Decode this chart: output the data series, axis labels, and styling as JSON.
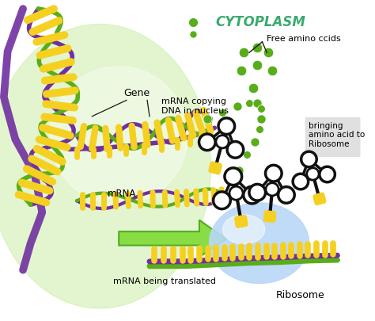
{
  "background_color": "#ffffff",
  "nucleus_color": "#c8eda0",
  "cytoplasm_label": "CYTOPLASM",
  "cytoplasm_color": "#3aaa6e",
  "labels": {
    "gene": "Gene",
    "mrna_copying": "mRNA copying\nDNA in nucleus",
    "mrna": "mRNA",
    "mrna_translated": "mRNA being translated",
    "free_amino": "Free amino ccids",
    "bringing": "bringing\namino acid to\nRibosome",
    "ribosome": "Ribosome"
  },
  "dna_purple": "#7030a0",
  "dna_green": "#5aad1a",
  "dna_black": "#1a1a1a",
  "dna_yellow": "#f5d020",
  "mrna_purple": "#9b30c8",
  "bead_color": "#5aad1a",
  "arrow_green": "#88dd44",
  "ribosome_blue": "#b8d8f8",
  "trna_outline": "#111111",
  "trna_fill": "#ffffff"
}
